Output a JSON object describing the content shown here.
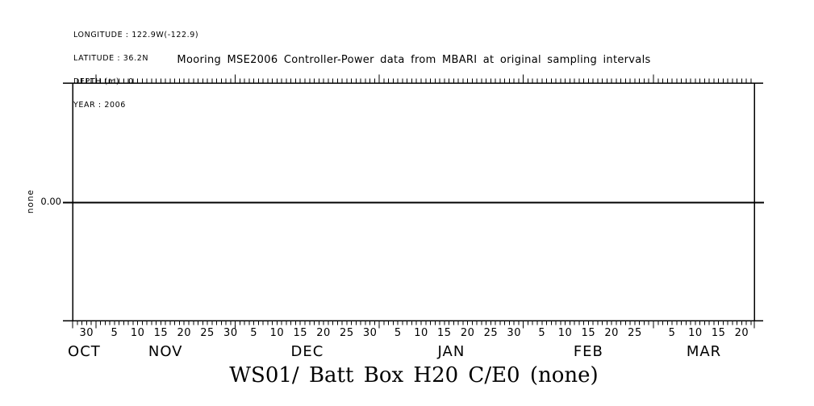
{
  "page": {
    "background_color": "#ffffff",
    "foreground_color": "#000000"
  },
  "metadata_block": {
    "lines": [
      "LONGITUDE : 122.9W(-122.9)",
      "LATITUDE : 36.2N",
      "DEPTH (m) : 0",
      "YEAR : 2006"
    ]
  },
  "chart_data": {
    "type": "line",
    "title": "Mooring MSE2006 Controller-Power data from MBARI at original sampling intervals",
    "footer_title": "WS01/ Batt Box H20 C/E0 (none)",
    "xlabel": "",
    "ylabel": "none",
    "grid": false,
    "legend": false,
    "y_axis": {
      "tick_labels": [
        "0.00"
      ],
      "zero_fraction_from_top": 0.5
    },
    "x_axis": {
      "minor_tick_every_days": 1,
      "major_ticks_at_month_boundaries": true,
      "months": [
        {
          "label": "OCT",
          "shown_days": 5,
          "first_shown_day_of_month": 27,
          "day_tick_labels": [
            30
          ]
        },
        {
          "label": "NOV",
          "shown_days": 30,
          "first_shown_day_of_month": 1,
          "day_tick_labels": [
            5,
            10,
            15,
            20,
            25,
            30
          ]
        },
        {
          "label": "DEC",
          "shown_days": 31,
          "first_shown_day_of_month": 1,
          "day_tick_labels": [
            5,
            10,
            15,
            20,
            25,
            30
          ]
        },
        {
          "label": "JAN",
          "shown_days": 31,
          "first_shown_day_of_month": 1,
          "day_tick_labels": [
            5,
            10,
            15,
            20,
            25,
            30
          ]
        },
        {
          "label": "FEB",
          "shown_days": 28,
          "first_shown_day_of_month": 1,
          "day_tick_labels": [
            5,
            10,
            15,
            20,
            25
          ]
        },
        {
          "label": "MAR",
          "shown_days": 21.7,
          "first_shown_day_of_month": 1,
          "day_tick_labels": [
            5,
            10,
            15,
            20
          ]
        }
      ]
    },
    "series": [
      {
        "name": "WS01/ Batt Box H20 C/E0 (none)",
        "constant_value": 0.0
      }
    ]
  }
}
